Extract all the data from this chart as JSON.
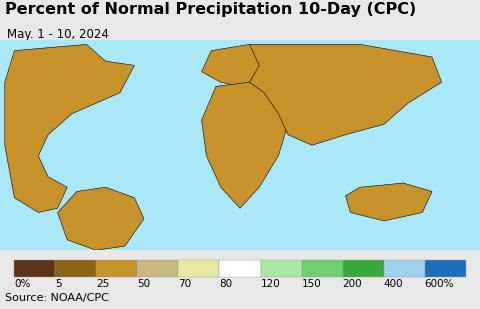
{
  "title": "Percent of Normal Precipitation 10-Day (CPC)",
  "subtitle": "May. 1 - 10, 2024",
  "source": "Source: NOAA/CPC",
  "colorbar_labels": [
    "0%",
    "5",
    "25",
    "50",
    "70",
    "80",
    "120",
    "150",
    "200",
    "400",
    "600%"
  ],
  "colorbar_colors": [
    "#5C3317",
    "#8B6314",
    "#C8922A",
    "#C8B882",
    "#E8E8A0",
    "#FFFFFF",
    "#A8E8A0",
    "#70D070",
    "#38A838",
    "#A0D0F0",
    "#1E6EBD"
  ],
  "ocean_color": "#A8E8F8",
  "bg_color": "#E8E8E8",
  "title_fontsize": 11.5,
  "subtitle_fontsize": 8.5,
  "source_fontsize": 8,
  "label_fontsize": 7.5
}
